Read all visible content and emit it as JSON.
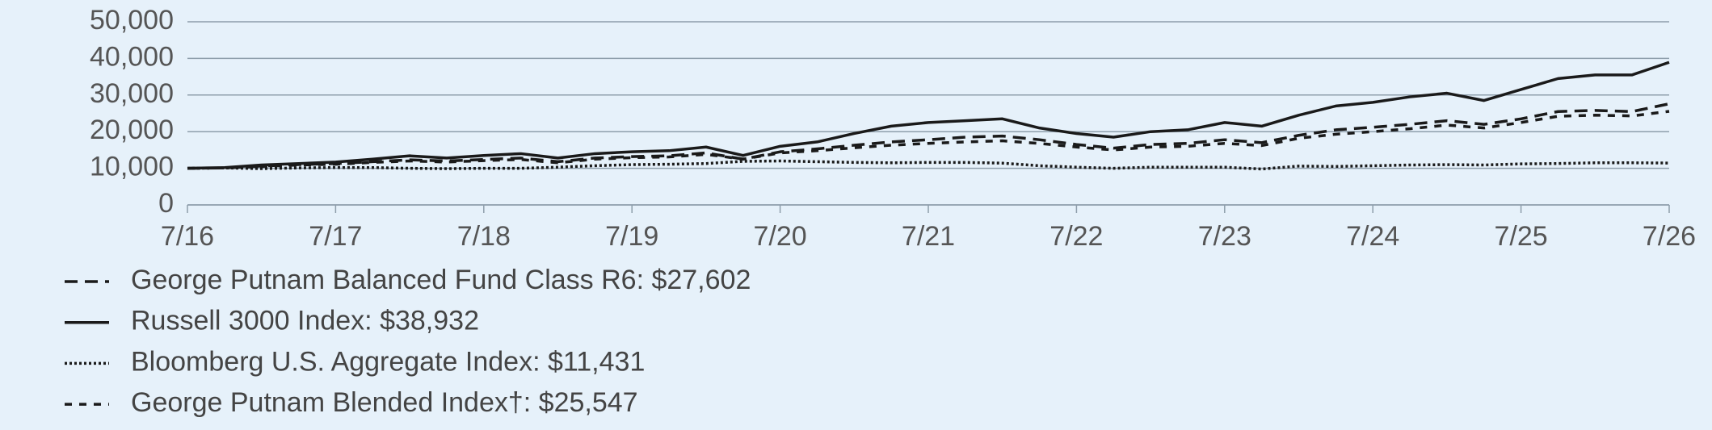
{
  "chart_data": {
    "type": "line",
    "categories": [
      "7/16",
      null,
      null,
      null,
      "7/17",
      null,
      null,
      null,
      "7/18",
      null,
      null,
      null,
      "7/19",
      null,
      null,
      null,
      "7/20",
      null,
      null,
      null,
      "7/21",
      null,
      null,
      null,
      "7/22",
      null,
      null,
      null,
      "7/23",
      null,
      null,
      null,
      "7/24",
      null,
      null,
      null,
      "7/25",
      null,
      null,
      null,
      "7/26"
    ],
    "ylim": [
      0,
      50000
    ],
    "yticks": [
      0,
      {
        "value": 10000,
        "label": "10,000"
      },
      {
        "value": 20000,
        "label": "20,000"
      },
      {
        "value": 30000,
        "label": "30,000"
      },
      {
        "value": 40000,
        "label": "40,000"
      },
      {
        "value": 50000,
        "label": "50,000"
      }
    ],
    "grid": true,
    "series": [
      {
        "name": "George Putnam Balanced Fund Class R6: $27,602",
        "color": "#1a1a1a",
        "style": "long-dash",
        "values": [
          10000,
          10100,
          10600,
          11000,
          11300,
          11800,
          12300,
          12000,
          12400,
          12800,
          11800,
          12800,
          13200,
          13400,
          14200,
          12500,
          14500,
          15300,
          16300,
          17200,
          17800,
          18500,
          18800,
          17800,
          16500,
          15500,
          16500,
          16800,
          17800,
          17000,
          19000,
          20500,
          21200,
          22000,
          23000,
          22000,
          23500,
          25500,
          25800,
          25500,
          27602
        ]
      },
      {
        "name": "Russell 3000 Index: $38,932",
        "color": "#1a1a1a",
        "style": "solid",
        "values": [
          10000,
          10200,
          10900,
          11300,
          11700,
          12500,
          13400,
          12800,
          13500,
          14000,
          12800,
          14000,
          14500,
          14800,
          15800,
          13500,
          16000,
          17200,
          19500,
          21500,
          22500,
          23000,
          23500,
          21000,
          19500,
          18500,
          20000,
          20500,
          22500,
          21500,
          24500,
          27000,
          28000,
          29500,
          30500,
          28500,
          31500,
          34500,
          35500,
          35500,
          38932
        ]
      },
      {
        "name": "Bloomberg U.S. Aggregate Index: $11,431",
        "color": "#1a1a1a",
        "style": "dotted",
        "values": [
          10000,
          10100,
          9900,
          10100,
          10200,
          10200,
          10000,
          9900,
          10000,
          10000,
          10300,
          10700,
          11000,
          11100,
          11300,
          11900,
          12000,
          11800,
          11600,
          11500,
          11600,
          11600,
          11400,
          10700,
          10300,
          10000,
          10300,
          10300,
          10300,
          9800,
          10600,
          10500,
          10700,
          10900,
          11000,
          10900,
          11200,
          11300,
          11500,
          11500,
          11431
        ]
      },
      {
        "name": "George Putnam Blended Index†: $25,547",
        "color": "#1a1a1a",
        "style": "short-dash",
        "values": [
          10000,
          10100,
          10500,
          10900,
          11100,
          11600,
          12000,
          11700,
          12100,
          12400,
          11500,
          12500,
          12900,
          13100,
          13800,
          12500,
          14200,
          14800,
          15600,
          16300,
          16800,
          17200,
          17500,
          16800,
          15800,
          15000,
          15800,
          16000,
          16800,
          16200,
          18200,
          19300,
          20000,
          20800,
          21800,
          21000,
          22500,
          24200,
          24500,
          24300,
          25547
        ]
      }
    ]
  }
}
